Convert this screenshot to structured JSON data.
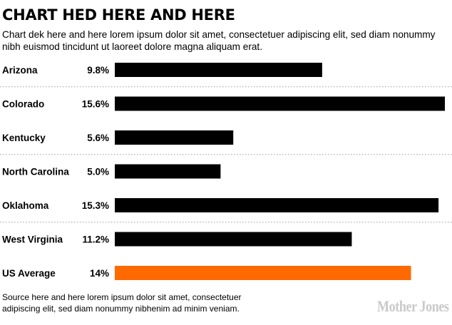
{
  "header": {
    "title": "CHART HED HERE AND HERE",
    "dek": "Chart dek here and here lorem ipsum dolor sit amet, consectetuer adipiscing elit, sed diam nonummy nibh euismod tincidunt ut laoreet dolore magna aliquam erat."
  },
  "chart_data": {
    "type": "bar",
    "orientation": "horizontal",
    "title": "CHART HED HERE AND HERE",
    "subtitle": "Chart dek here and here lorem ipsum dolor sit amet, consectetuer adipiscing elit, sed diam nonummy nibh euismod tincidunt ut laoreet dolore magna aliquam erat.",
    "categories": [
      "Arizona",
      "Colorado",
      "Kentucky",
      "North Carolina",
      "Oklahoma",
      "West Virginia",
      "US Average"
    ],
    "values": [
      9.8,
      15.6,
      5.6,
      5.0,
      15.3,
      11.2,
      14
    ],
    "value_labels": [
      "9.8%",
      "15.6%",
      "5.6%",
      "5.0%",
      "15.3%",
      "11.2%",
      "14%"
    ],
    "unit": "%",
    "xlim": [
      0,
      15.6
    ],
    "colors": {
      "bar": "#000000",
      "highlight": "#ff6a00",
      "highlight_category": "US Average",
      "divider": "#9a9a9a"
    },
    "grid": false,
    "legend": "none",
    "dividers": "dotted lines between rows",
    "xlabel": "",
    "ylabel": ""
  },
  "footer": {
    "source": "Source here and here lorem ipsum dolor sit amet, consectetuer adipiscing elit, sed diam nonummy nibhenim ad minim veniam.",
    "logo": "Mother Jones"
  }
}
